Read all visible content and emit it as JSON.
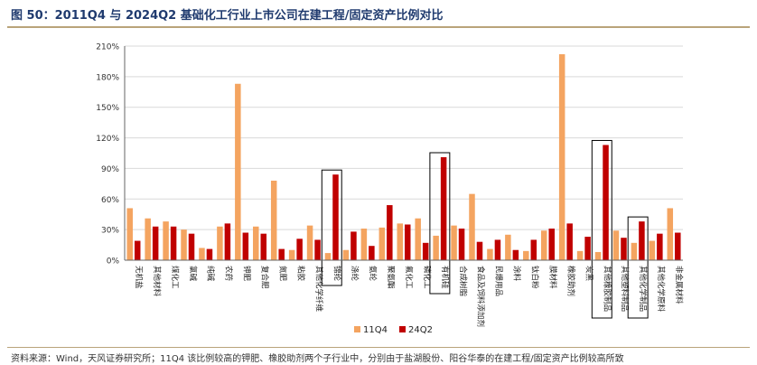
{
  "title": "图 50：2011Q4 与 2024Q2 基础化工行业上市公司在建工程/固定资产比例对比",
  "source": "资料来源：Wind，天风证券研究所；11Q4 该比例较高的钾肥、橡胶助剂两个子行业中，分别由于盐湖股份、阳谷华泰的在建工程/固定资产比例较高所致",
  "colors": {
    "series1": "#f4a460",
    "series2": "#c00000"
  },
  "chart_data": {
    "type": "bar",
    "title": "",
    "xlabel": "",
    "ylabel": "",
    "ylim": [
      0,
      210
    ],
    "yticks": [
      "0%",
      "30%",
      "60%",
      "90%",
      "120%",
      "150%",
      "180%",
      "210%"
    ],
    "legend_position": "bottom",
    "categories": [
      "无机盐",
      "其他材料",
      "煤化工",
      "氯碱",
      "纯碱",
      "农药",
      "钾肥",
      "复合肥",
      "氮肥",
      "粘胶",
      "其他化学纤维",
      "锦纶",
      "涤纶",
      "氨纶",
      "聚氨酯",
      "氟化工",
      "磷化工",
      "有机硅",
      "合成树脂",
      "食品及饲料添加剂",
      "民爆用品",
      "涂料",
      "钛白粉",
      "膜材料",
      "橡胶助剂",
      "炭黑",
      "其他橡胶制品",
      "其他塑料制品",
      "其他化学制品",
      "其他化学原料",
      "非金属材料"
    ],
    "series": [
      {
        "name": "11Q4",
        "values": [
          51,
          41,
          38,
          30,
          12,
          33,
          173,
          33,
          78,
          10,
          34,
          7,
          10,
          31,
          32,
          36,
          41,
          24,
          34,
          65,
          11,
          25,
          9,
          29,
          202,
          9,
          8,
          29,
          17,
          19,
          51
        ]
      },
      {
        "name": "24Q2",
        "values": [
          19,
          33,
          33,
          26,
          11,
          36,
          27,
          26,
          11,
          21,
          20,
          84,
          28,
          14,
          54,
          35,
          17,
          101,
          31,
          18,
          20,
          10,
          20,
          31,
          36,
          23,
          113,
          22,
          38,
          26,
          27
        ]
      }
    ],
    "highlighted_categories": [
      "锦纶",
      "有机硅",
      "其他橡胶制品",
      "其他化学制品"
    ]
  }
}
